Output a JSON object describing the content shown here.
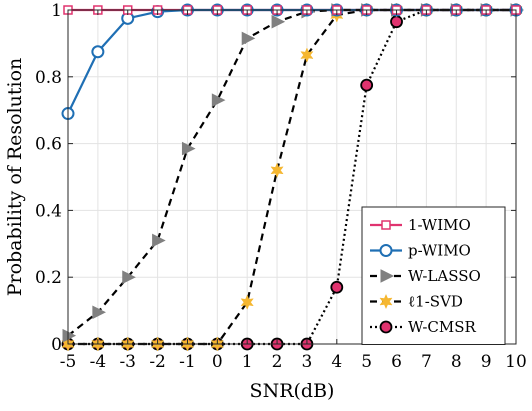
{
  "chart_data": {
    "type": "line",
    "title": "",
    "xlabel": "SNR(dB)",
    "ylabel": "Probability of Resolution",
    "xlim": [
      -5,
      10
    ],
    "ylim": [
      0,
      1
    ],
    "xticks": [
      -5,
      -4,
      -3,
      -2,
      -1,
      0,
      1,
      2,
      3,
      4,
      5,
      6,
      7,
      8,
      9,
      10
    ],
    "yticks": [
      0,
      0.2,
      0.4,
      0.6,
      0.8,
      1
    ],
    "ytick_labels": [
      "0",
      "0.2",
      "0.4",
      "0.6",
      "0.8",
      "1"
    ],
    "grid": true,
    "legend_position": "bottom-right",
    "x": [
      -5,
      -4,
      -3,
      -2,
      -1,
      0,
      1,
      2,
      3,
      4,
      5,
      6,
      7,
      8,
      9,
      10
    ],
    "series": [
      {
        "name": "1-WIMO",
        "color": "#e0336f",
        "line": "solid",
        "marker": "square",
        "values": [
          1,
          1,
          1,
          1,
          1,
          1,
          1,
          1,
          1,
          1,
          1,
          1,
          1,
          1,
          1,
          1
        ]
      },
      {
        "name": "p-WIMO",
        "color": "#1f6fb4",
        "line": "solid",
        "marker": "circle",
        "values": [
          0.69,
          0.875,
          0.975,
          0.995,
          1,
          1,
          1,
          1,
          1,
          1,
          1,
          1,
          1,
          1,
          1,
          1
        ]
      },
      {
        "name": "W-LASSO",
        "color": "#000000",
        "marker_color": "#808080",
        "line": "dashed",
        "marker": "triangle-right",
        "values": [
          0.025,
          0.095,
          0.2,
          0.31,
          0.585,
          0.73,
          0.915,
          0.965,
          0.995,
          1,
          1,
          1,
          1,
          1,
          1,
          1
        ]
      },
      {
        "name": "ℓ1-SVD",
        "color": "#000000",
        "marker_color": "#f5b731",
        "line": "dashed",
        "marker": "star",
        "values": [
          0,
          0,
          0,
          0,
          0,
          0,
          0.125,
          0.52,
          0.865,
          0.985,
          1,
          1,
          1,
          1,
          1,
          1
        ]
      },
      {
        "name": "W-CMSR",
        "color": "#000000",
        "marker_color": "#e0336f",
        "line": "dotted",
        "marker": "circle-filled",
        "values": [
          0,
          0,
          0,
          0,
          0,
          0,
          0,
          0,
          0,
          0.17,
          0.775,
          0.965,
          1,
          1,
          1,
          1
        ]
      }
    ]
  }
}
